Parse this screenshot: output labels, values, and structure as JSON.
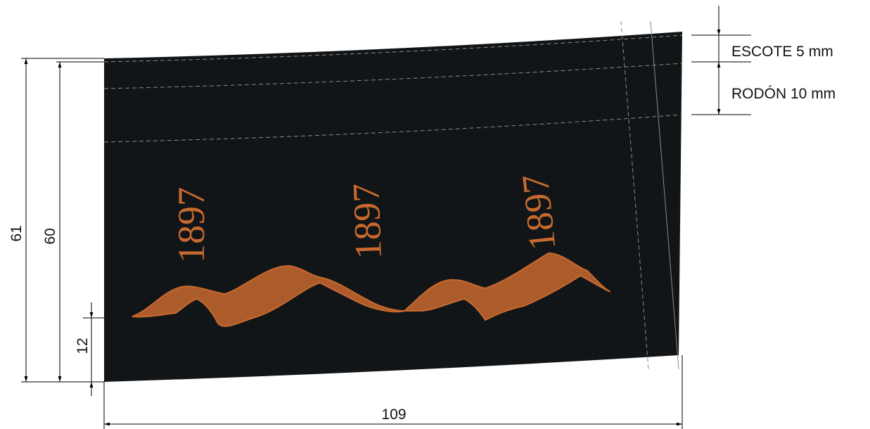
{
  "dimensions": {
    "total_height": 61,
    "inner_height": 60,
    "print_offset": 12,
    "width": 109
  },
  "labels": {
    "escote": "ESCOTE 5 mm",
    "rodon": "RODÓN 10 mm"
  },
  "prints": [
    "1897",
    "1897",
    "1897"
  ]
}
